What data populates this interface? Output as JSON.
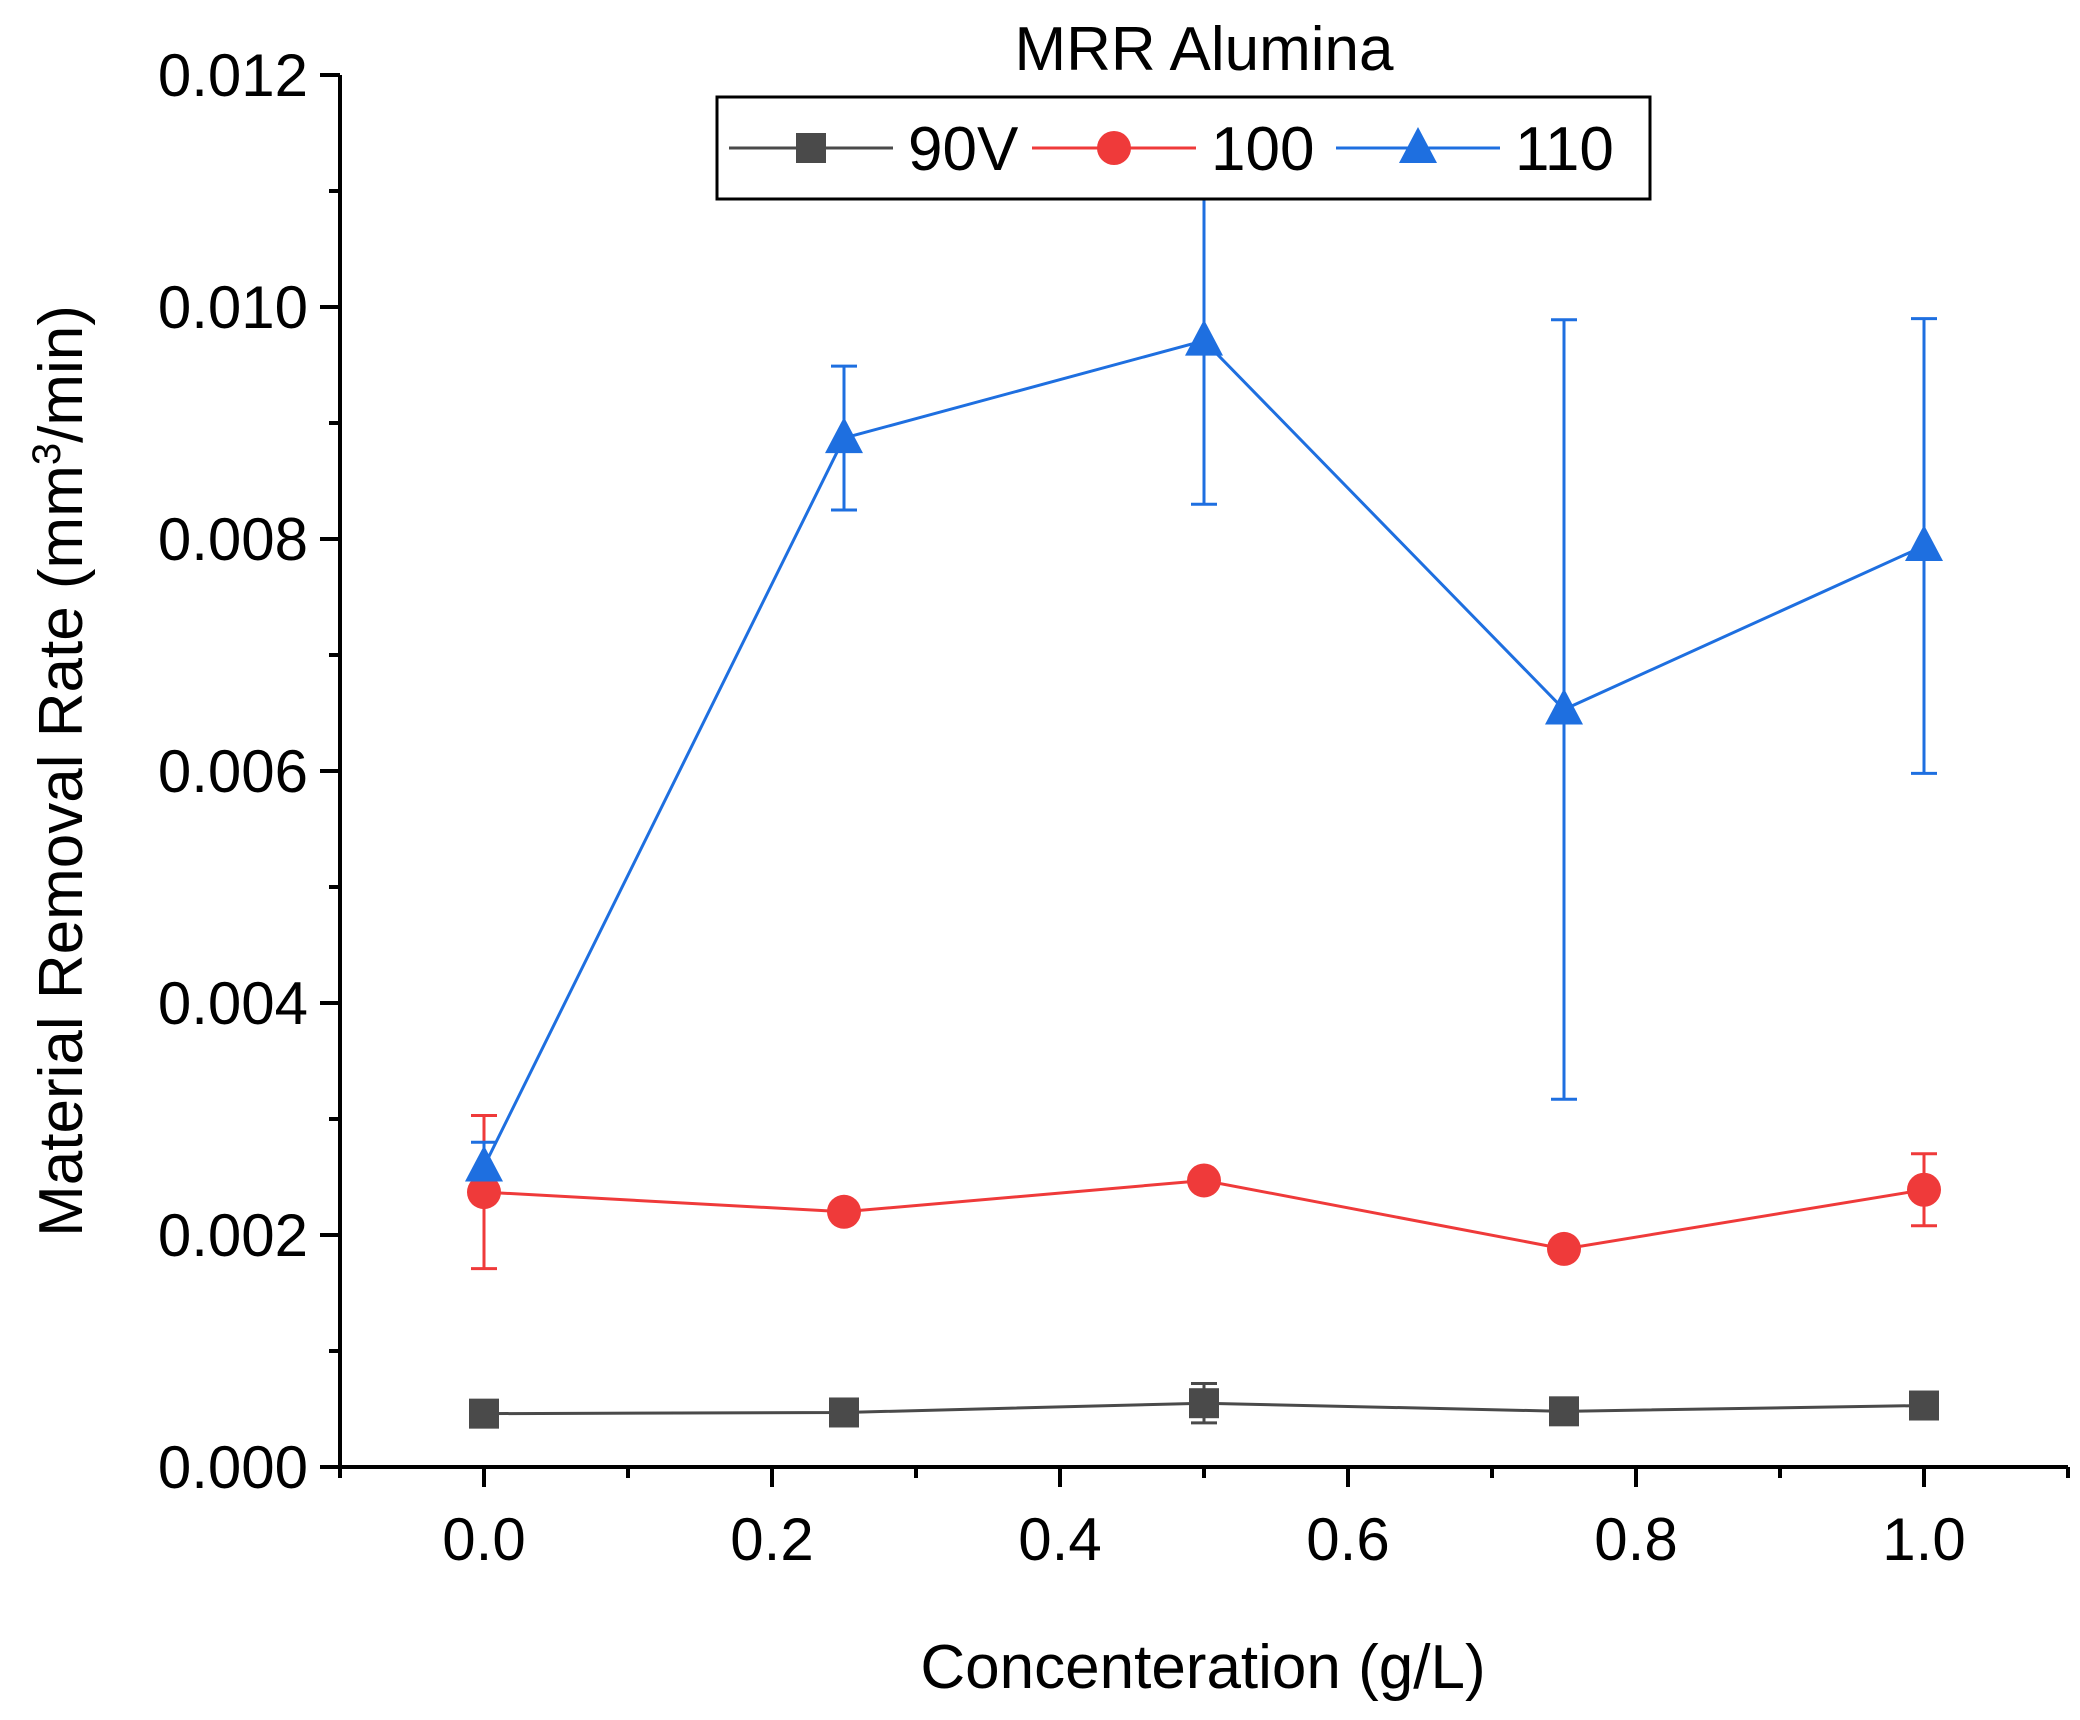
{
  "chart_data": {
    "type": "line",
    "title": "MRR Alumina",
    "xlabel": "Concenteration (g/L)",
    "ylabel_main": "Material Removal Rate (mm",
    "ylabel_sup": "3",
    "ylabel_end": "/min)",
    "xlim": [
      -0.1,
      1.1
    ],
    "ylim": [
      0,
      0.012
    ],
    "x_ticks": [
      0.0,
      0.2,
      0.4,
      0.6,
      0.8,
      1.0
    ],
    "x_tick_labels": [
      "0.0",
      "0.2",
      "0.4",
      "0.6",
      "0.8",
      "1.0"
    ],
    "y_ticks": [
      0,
      0.002,
      0.004,
      0.006,
      0.008,
      0.01,
      0.012
    ],
    "y_tick_labels": [
      "0.000",
      "0.002",
      "0.004",
      "0.006",
      "0.008",
      "0.010",
      "0.012"
    ],
    "legend_position": "top-center",
    "x": [
      0.0,
      0.25,
      0.5,
      0.75,
      1.0
    ],
    "series": [
      {
        "name": "90V",
        "color": "#4a4a4a",
        "marker": "square",
        "values": [
          0.00046,
          0.00047,
          0.00055,
          0.00048,
          0.00053
        ],
        "errors": [
          3e-05,
          3e-05,
          0.00017,
          3e-05,
          4e-05
        ]
      },
      {
        "name": "100",
        "color": "#ef3a3a",
        "marker": "circle",
        "values": [
          0.00237,
          0.0022,
          0.00247,
          0.00188,
          0.00239
        ],
        "errors": [
          0.00066,
          3e-05,
          3e-05,
          3e-05,
          0.00031
        ]
      },
      {
        "name": "110",
        "color": "#1e6fe0",
        "marker": "triangle",
        "values": [
          0.00259,
          0.00887,
          0.00971,
          0.00653,
          0.00794
        ],
        "errors": [
          0.00021,
          0.00062,
          0.00141,
          0.00336,
          0.00196
        ]
      }
    ]
  }
}
